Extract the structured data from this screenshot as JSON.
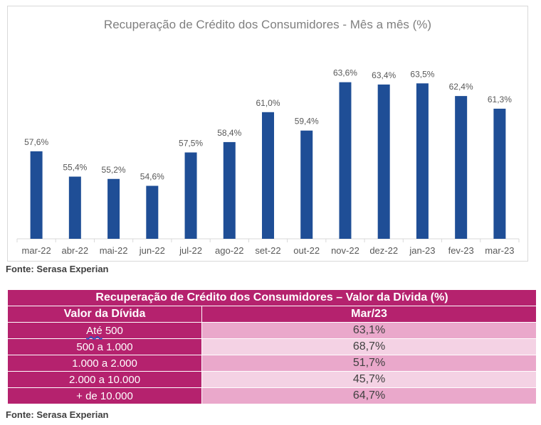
{
  "chart_data": {
    "type": "bar",
    "title": "Recuperação de Crédito dos Consumidores - Mês a mês (%)",
    "xlabel": "",
    "ylabel": "",
    "ylim": [
      50,
      65
    ],
    "grid": false,
    "legend": "none",
    "bar_color": "#1f4e96",
    "categories": [
      "mar-22",
      "abr-22",
      "mai-22",
      "jun-22",
      "jul-22",
      "ago-22",
      "set-22",
      "out-22",
      "nov-22",
      "dez-22",
      "jan-23",
      "fev-23",
      "mar-23"
    ],
    "values": [
      57.6,
      55.4,
      55.2,
      54.6,
      57.5,
      58.4,
      61.0,
      59.4,
      63.6,
      63.4,
      63.5,
      62.4,
      61.3
    ],
    "data_labels": [
      "57,6%",
      "55,4%",
      "55,2%",
      "54,6%",
      "57,5%",
      "58,4%",
      "61,0%",
      "59,4%",
      "63,6%",
      "63,4%",
      "63,5%",
      "62,4%",
      "61,3%"
    ]
  },
  "chart_source": "Fonte: Serasa Experian",
  "table": {
    "title": "Recuperação de Crédito dos Consumidores – Valor da Dívida (%)",
    "col1_header": "Valor da Dívida",
    "col2_header": "Mar/23",
    "header_color": "#b5226e",
    "rows": [
      {
        "label_a": "Até",
        "label_b": " 500",
        "value": "63,1%"
      },
      {
        "label": "500 a 1.000",
        "value": "68,7%"
      },
      {
        "label": "1.000 a 2.000",
        "value": "51,7%"
      },
      {
        "label": "2.000 a 10.000",
        "value": "45,7%"
      },
      {
        "label": "+ de 10.000",
        "value": "64,7%"
      }
    ]
  },
  "table_source": "Fonte: Serasa Experian"
}
